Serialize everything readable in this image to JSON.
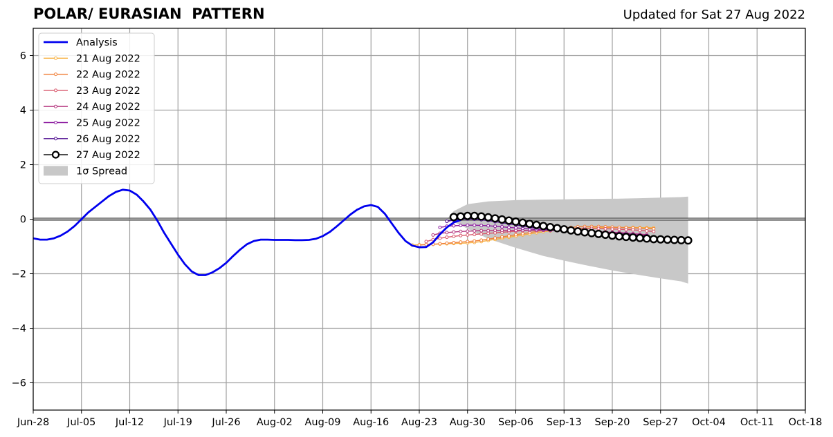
{
  "chart_data": {
    "type": "line",
    "title": "POLAR/ EURASIAN  PATTERN",
    "updated": "Updated for Sat 27 Aug 2022",
    "xlabel": "",
    "ylabel": "",
    "xlim": [
      "2022-06-28",
      "2022-10-18"
    ],
    "ylim": [
      -7,
      7
    ],
    "grid": true,
    "legend_position": "top-left",
    "x_ticks": [
      "Jun-28",
      "Jul-05",
      "Jul-12",
      "Jul-19",
      "Jul-26",
      "Aug-02",
      "Aug-09",
      "Aug-16",
      "Aug-23",
      "Aug-30",
      "Sep-06",
      "Sep-13",
      "Sep-20",
      "Sep-27",
      "Oct-04",
      "Oct-11",
      "Oct-18"
    ],
    "x_tick_dates": [
      "2022-06-28",
      "2022-07-05",
      "2022-07-12",
      "2022-07-19",
      "2022-07-26",
      "2022-08-02",
      "2022-08-09",
      "2022-08-16",
      "2022-08-23",
      "2022-08-30",
      "2022-09-06",
      "2022-09-13",
      "2022-09-20",
      "2022-09-27",
      "2022-10-04",
      "2022-10-11",
      "2022-10-18"
    ],
    "y_ticks": [
      6,
      4,
      2,
      0,
      -2,
      -4,
      -6
    ],
    "y_tick_labels": [
      "6",
      "4",
      "2",
      "0",
      "−2",
      "−4",
      "−6"
    ],
    "analysis": {
      "name": "Analysis",
      "color": "#0000ee",
      "start_date": "2022-06-28",
      "values": [
        -0.7,
        -0.75,
        -0.75,
        -0.7,
        -0.6,
        -0.45,
        -0.25,
        0.0,
        0.25,
        0.45,
        0.65,
        0.85,
        1.0,
        1.08,
        1.05,
        0.9,
        0.65,
        0.35,
        -0.05,
        -0.5,
        -0.9,
        -1.3,
        -1.65,
        -1.92,
        -2.05,
        -2.05,
        -1.95,
        -1.8,
        -1.6,
        -1.35,
        -1.12,
        -0.92,
        -0.8,
        -0.75,
        -0.75,
        -0.76,
        -0.76,
        -0.76,
        -0.77,
        -0.77,
        -0.76,
        -0.72,
        -0.62,
        -0.47,
        -0.27,
        -0.05,
        0.17,
        0.35,
        0.47,
        0.52,
        0.45,
        0.2,
        -0.15,
        -0.5,
        -0.8,
        -0.97,
        -1.03,
        -1.02,
        -0.85,
        -0.55,
        -0.3,
        -0.12,
        -0.03
      ]
    },
    "forecasts": [
      {
        "name": "21 Aug 2022",
        "color": "#f7b03f",
        "start_date": "2022-08-22",
        "values": [
          -0.95,
          -0.94,
          -0.93,
          -0.92,
          -0.91,
          -0.9,
          -0.89,
          -0.88,
          -0.87,
          -0.85,
          -0.82,
          -0.78,
          -0.74,
          -0.7,
          -0.66,
          -0.62,
          -0.58,
          -0.54,
          -0.5,
          -0.46,
          -0.43,
          -0.4,
          -0.38,
          -0.36,
          -0.34,
          -0.33,
          -0.32,
          -0.31,
          -0.31,
          -0.3,
          -0.3,
          -0.3,
          -0.3,
          -0.31,
          -0.31,
          -0.32
        ]
      },
      {
        "name": "22 Aug 2022",
        "color": "#f0803a",
        "start_date": "2022-08-23",
        "values": [
          -0.95,
          -0.93,
          -0.92,
          -0.9,
          -0.88,
          -0.86,
          -0.84,
          -0.82,
          -0.8,
          -0.77,
          -0.73,
          -0.69,
          -0.65,
          -0.61,
          -0.57,
          -0.53,
          -0.49,
          -0.45,
          -0.41,
          -0.38,
          -0.35,
          -0.32,
          -0.3,
          -0.28,
          -0.27,
          -0.27,
          -0.27,
          -0.28,
          -0.29,
          -0.3,
          -0.31,
          -0.32,
          -0.33,
          -0.34,
          -0.35
        ]
      },
      {
        "name": "23 Aug 2022",
        "color": "#d8576b",
        "start_date": "2022-08-24",
        "values": [
          -0.82,
          -0.75,
          -0.7,
          -0.66,
          -0.63,
          -0.6,
          -0.58,
          -0.56,
          -0.54,
          -0.52,
          -0.5,
          -0.48,
          -0.46,
          -0.44,
          -0.42,
          -0.41,
          -0.4,
          -0.39,
          -0.38,
          -0.37,
          -0.36,
          -0.35,
          -0.35,
          -0.34,
          -0.34,
          -0.34,
          -0.35,
          -0.36,
          -0.37,
          -0.38,
          -0.39,
          -0.41,
          -0.43,
          -0.45
        ]
      },
      {
        "name": "24 Aug 2022",
        "color": "#b5367f",
        "start_date": "2022-08-25",
        "values": [
          -0.58,
          -0.52,
          -0.49,
          -0.47,
          -0.45,
          -0.44,
          -0.43,
          -0.42,
          -0.42,
          -0.41,
          -0.41,
          -0.41,
          -0.41,
          -0.41,
          -0.41,
          -0.41,
          -0.41,
          -0.41,
          -0.42,
          -0.42,
          -0.43,
          -0.43,
          -0.44,
          -0.45,
          -0.46,
          -0.47,
          -0.48,
          -0.49,
          -0.51,
          -0.53,
          -0.55,
          -0.57
        ]
      },
      {
        "name": "25 Aug 2022",
        "color": "#8c1aa0",
        "start_date": "2022-08-26",
        "values": [
          -0.3,
          -0.26,
          -0.24,
          -0.23,
          -0.22,
          -0.22,
          -0.23,
          -0.24,
          -0.26,
          -0.28,
          -0.3,
          -0.32,
          -0.34,
          -0.36,
          -0.38,
          -0.39,
          -0.41,
          -0.42,
          -0.43,
          -0.44,
          -0.45,
          -0.46,
          -0.47,
          -0.48,
          -0.49,
          -0.5,
          -0.52,
          -0.54,
          -0.56,
          -0.58,
          -0.6
        ]
      },
      {
        "name": "26 Aug 2022",
        "color": "#4c0a8f",
        "start_date": "2022-08-27",
        "values": [
          -0.08,
          -0.03,
          0.0,
          0.01,
          0.0,
          -0.02,
          -0.05,
          -0.09,
          -0.13,
          -0.17,
          -0.21,
          -0.25,
          -0.29,
          -0.32,
          -0.35,
          -0.38,
          -0.41,
          -0.43,
          -0.45,
          -0.47,
          -0.49,
          -0.51,
          -0.53,
          -0.55,
          -0.57,
          -0.6,
          -0.63,
          -0.66,
          -0.7
        ]
      },
      {
        "name": "27 Aug 2022",
        "color": "#000000",
        "start_date": "2022-08-28",
        "marker": "open-circle",
        "values": [
          0.08,
          0.1,
          0.12,
          0.12,
          0.1,
          0.07,
          0.03,
          -0.01,
          -0.05,
          -0.09,
          -0.13,
          -0.17,
          -0.21,
          -0.25,
          -0.29,
          -0.33,
          -0.37,
          -0.41,
          -0.45,
          -0.48,
          -0.51,
          -0.54,
          -0.57,
          -0.6,
          -0.63,
          -0.65,
          -0.67,
          -0.69,
          -0.71,
          -0.73,
          -0.74,
          -0.75,
          -0.76,
          -0.77,
          -0.78
        ]
      }
    ],
    "spread": {
      "name": "1σ Spread",
      "color": "#c8c8c8",
      "dates": [
        "2022-08-27",
        "2022-08-28",
        "2022-08-30",
        "2022-09-02",
        "2022-09-06",
        "2022-09-10",
        "2022-09-13",
        "2022-09-16",
        "2022-09-20",
        "2022-09-24",
        "2022-09-27",
        "2022-09-30",
        "2022-10-01"
      ],
      "upper": [
        0.0,
        0.3,
        0.55,
        0.65,
        0.7,
        0.72,
        0.73,
        0.74,
        0.75,
        0.77,
        0.79,
        0.81,
        0.83
      ],
      "lower": [
        0.0,
        -0.1,
        -0.35,
        -0.72,
        -1.05,
        -1.35,
        -1.52,
        -1.68,
        -1.88,
        -2.05,
        -2.17,
        -2.28,
        -2.36
      ]
    }
  }
}
